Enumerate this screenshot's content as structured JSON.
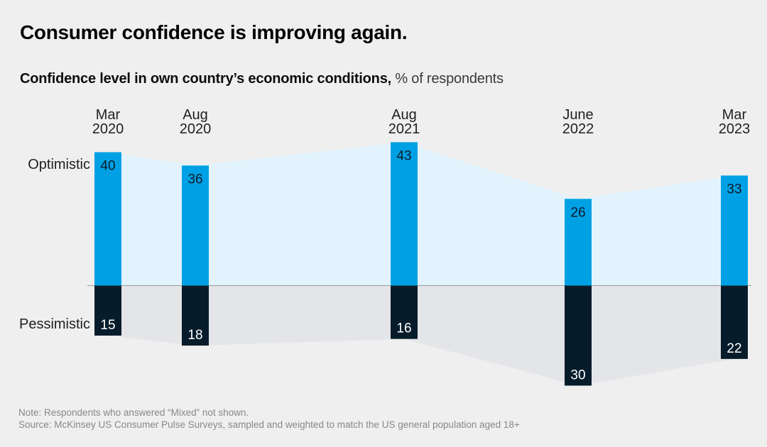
{
  "header": {
    "title": "Consumer confidence is improving again.",
    "subtitle_bold": "Confidence level in own country’s economic conditions,",
    "subtitle_regular": " % of respondents"
  },
  "chart_data": {
    "type": "bar",
    "variant": "diverging-vertical-timeline",
    "title": "Consumer confidence is improving again.",
    "subtitle": "Confidence level in own country’s economic conditions, % of respondents",
    "unit": "% of respondents",
    "categories": [
      {
        "label": "Mar 2020",
        "line1": "Mar",
        "line2": "2020"
      },
      {
        "label": "Aug 2020",
        "line1": "Aug",
        "line2": "2020"
      },
      {
        "label": "Aug 2021",
        "line1": "Aug",
        "line2": "2021"
      },
      {
        "label": "June 2022",
        "line1": "June",
        "line2": "2022"
      },
      {
        "label": "Mar 2023",
        "line1": "Mar",
        "line2": "2023"
      }
    ],
    "series": [
      {
        "name": "Optimistic",
        "direction": "up",
        "values": [
          40,
          36,
          43,
          26,
          33
        ],
        "bar_color": "#00a1e4",
        "area_color": "#e3f3fd",
        "value_label_color": "#0a1a28"
      },
      {
        "name": "Pessimistic",
        "direction": "down",
        "values": [
          15,
          18,
          16,
          30,
          22
        ],
        "bar_color": "#071c2b",
        "area_color": "#e4e5e8",
        "value_label_color": "#ffffff"
      }
    ],
    "baseline": 0,
    "baseline_color": "#999a9c",
    "grid": false,
    "legend_position": "row-labels-left"
  },
  "colors": {
    "background": "#efefef",
    "category_label": "#212121",
    "row_label": "#1f1f1f",
    "footnote": "#87888a"
  },
  "footer": {
    "note": "Note: Respondents who answered “Mixed” not shown.",
    "source": "Source: McKinsey US Consumer Pulse Surveys, sampled and weighted to match the US general population aged 18+"
  }
}
